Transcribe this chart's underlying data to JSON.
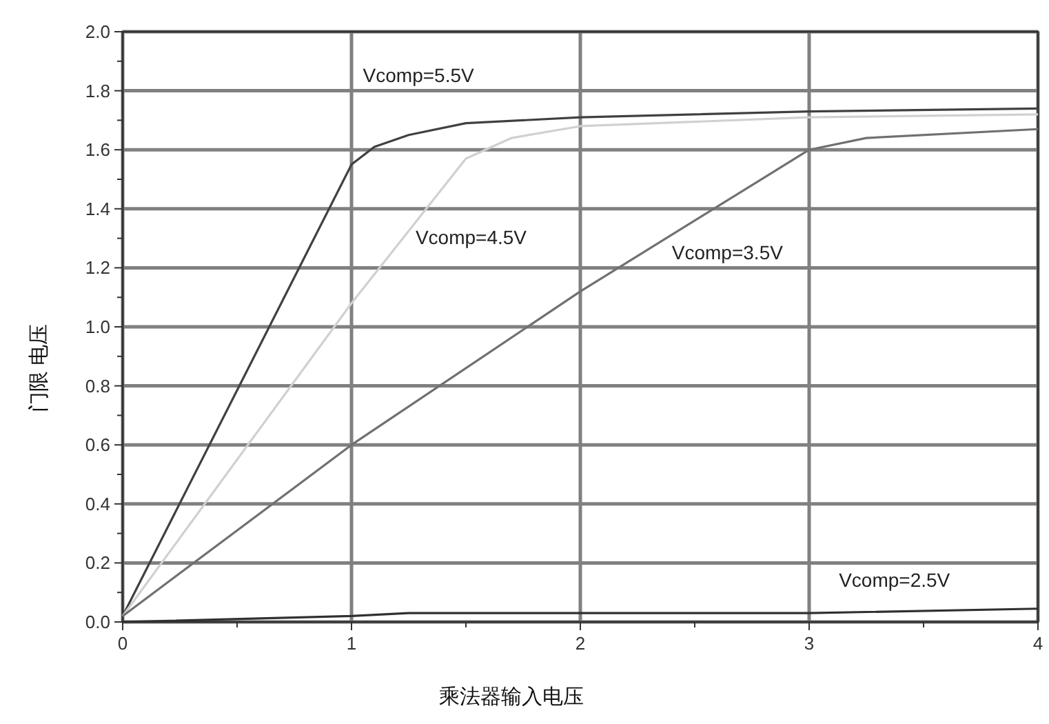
{
  "chart_data": {
    "type": "line",
    "xlabel": "乘法器输入电压",
    "ylabel": "门限 电压",
    "xlim": [
      0,
      4
    ],
    "ylim": [
      0,
      2.0
    ],
    "xticks": [
      0,
      1,
      2,
      3,
      4
    ],
    "yticks": [
      {
        "value": 0,
        "label": "0.0"
      },
      {
        "value": 0.2,
        "label": "0.2"
      },
      {
        "value": 0.4,
        "label": "0.4"
      },
      {
        "value": 0.6,
        "label": "0.6"
      },
      {
        "value": 0.8,
        "label": "0.8"
      },
      {
        "value": 1.0,
        "label": "1.0"
      },
      {
        "value": 1.2,
        "label": "1.2"
      },
      {
        "value": 1.4,
        "label": "1.4"
      },
      {
        "value": 1.6,
        "label": "1.6"
      },
      {
        "value": 1.8,
        "label": "1.8"
      },
      {
        "value": 2.0,
        "label": "2.0"
      }
    ],
    "grid": true,
    "marker": "none",
    "line_style": "solid",
    "series": [
      {
        "name": "Vcomp=5.5V",
        "color": "#404040",
        "x": [
          0,
          1,
          1.1,
          1.25,
          1.5,
          2,
          3,
          4
        ],
        "values": [
          0.02,
          1.55,
          1.61,
          1.65,
          1.69,
          1.71,
          1.73,
          1.74
        ]
      },
      {
        "name": "Vcomp=4.5V",
        "color": "#d0d0d0",
        "x": [
          0,
          1,
          1.5,
          1.7,
          2,
          3,
          4
        ],
        "values": [
          0.02,
          1.08,
          1.57,
          1.64,
          1.68,
          1.71,
          1.72
        ]
      },
      {
        "name": "Vcomp=3.5V",
        "color": "#707070",
        "x": [
          0,
          1,
          2,
          3,
          3.25,
          4
        ],
        "values": [
          0.02,
          0.6,
          1.12,
          1.6,
          1.64,
          1.67
        ]
      },
      {
        "name": "Vcomp=2.5V",
        "color": "#303030",
        "x": [
          0,
          1,
          1.25,
          3,
          4
        ],
        "values": [
          0,
          0.02,
          0.03,
          0.03,
          0.045
        ]
      }
    ]
  }
}
